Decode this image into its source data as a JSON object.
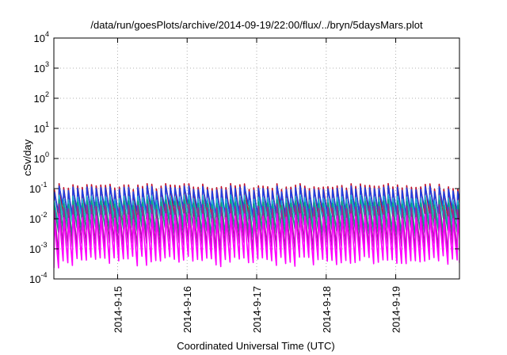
{
  "chart_data": {
    "type": "line",
    "title": "/data/run/goesPlots/archive/2014-09-19/22:00/flux/../bryn/5daysMars.plot",
    "xlabel": "Coordinated Universal Time (UTC)",
    "ylabel": "cSv/day",
    "y_scale": "log",
    "ylim": [
      0.0001,
      10000
    ],
    "y_ticks": [
      {
        "value": 0.0001,
        "base": "10",
        "exp": "-4"
      },
      {
        "value": 0.001,
        "base": "10",
        "exp": "-3"
      },
      {
        "value": 0.01,
        "base": "10",
        "exp": "-2"
      },
      {
        "value": 0.1,
        "base": "10",
        "exp": "-1"
      },
      {
        "value": 1,
        "base": "10",
        "exp": "0"
      },
      {
        "value": 10,
        "base": "10",
        "exp": "1"
      },
      {
        "value": 100,
        "base": "10",
        "exp": "2"
      },
      {
        "value": 1000,
        "base": "10",
        "exp": "3"
      },
      {
        "value": 10000,
        "base": "10",
        "exp": "4"
      }
    ],
    "xlim": [
      "2014-09-14 02:00",
      "2014-09-19 22:00"
    ],
    "x_ticks": [
      "2014-9-15",
      "2014-9-16",
      "2014-9-17",
      "2014-9-18",
      "2014-9-19"
    ],
    "grid": true,
    "legend": "none",
    "pattern": {
      "description": "sawtooth traces, sharp rise each ~1.6 h then decay",
      "period_hours": 1.6
    },
    "series": [
      {
        "color": "#c0102a",
        "peak": 0.12,
        "trough": 0.012
      },
      {
        "color": "#2040e0",
        "peak": 0.1,
        "trough": 0.018
      },
      {
        "color": "#20b0d0",
        "peak": 0.05,
        "trough": 0.009
      },
      {
        "color": "#10a080",
        "peak": 0.035,
        "trough": 0.004
      },
      {
        "color": "#a020a0",
        "peak": 0.025,
        "trough": 0.0012
      },
      {
        "color": "#ff00ff",
        "peak": 0.012,
        "trough": 0.0004
      }
    ]
  }
}
